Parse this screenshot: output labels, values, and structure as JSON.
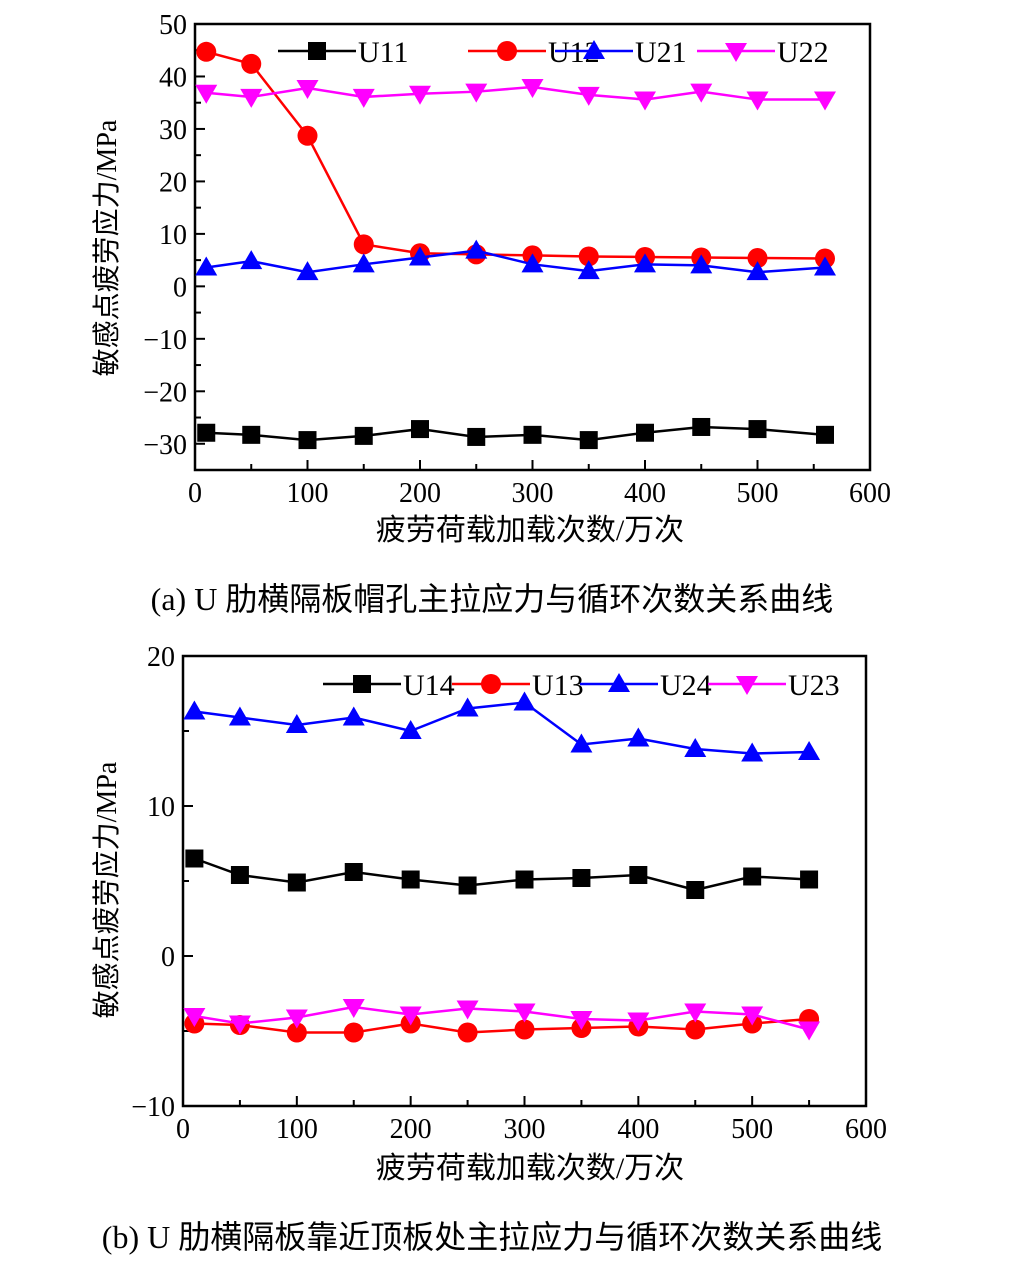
{
  "chart_data": [
    {
      "type": "line",
      "caption": "(a) U 肋横隔板帽孔主拉应力与循环次数关系曲线",
      "xlabel": "疲劳荷载加载次数/万次",
      "ylabel": "敏感点疲劳应力/MPa",
      "xlim": [
        0,
        600
      ],
      "ylim": [
        -35,
        50
      ],
      "xticks": [
        0,
        100,
        200,
        300,
        400,
        500,
        600
      ],
      "yticks": [
        50,
        40,
        30,
        20,
        10,
        0,
        -10,
        -20,
        -30
      ],
      "ytick_labels": [
        "50",
        "40",
        "30",
        "20",
        "10",
        "0",
        "−10",
        "−20",
        "−30"
      ],
      "legend_position": "top",
      "x": [
        10,
        50,
        100,
        150,
        200,
        250,
        300,
        350,
        400,
        450,
        500,
        560
      ],
      "series": [
        {
          "name": "U11",
          "color": "#000000",
          "marker": "square",
          "values": [
            -27.9,
            -28.3,
            -29.3,
            -28.5,
            -27.2,
            -28.7,
            -28.3,
            -29.3,
            -27.9,
            -26.8,
            -27.2,
            -28.3
          ]
        },
        {
          "name": "U12",
          "color": "#ff0000",
          "marker": "circle",
          "values": [
            44.7,
            42.4,
            28.7,
            8.0,
            6.3,
            6.1,
            5.9,
            5.7,
            5.6,
            5.5,
            5.4,
            5.3
          ]
        },
        {
          "name": "U21",
          "color": "#0000ff",
          "marker": "triangle-up",
          "values": [
            3.6,
            4.8,
            2.7,
            4.2,
            5.5,
            6.8,
            4.2,
            2.9,
            4.2,
            4.0,
            2.7,
            3.6
          ]
        },
        {
          "name": "U22",
          "color": "#ff00ff",
          "marker": "triangle-down",
          "values": [
            36.9,
            36.1,
            37.8,
            36.1,
            36.7,
            37.1,
            38.0,
            36.5,
            35.6,
            37.1,
            35.6,
            35.6
          ]
        }
      ]
    },
    {
      "type": "line",
      "caption": "(b) U 肋横隔板靠近顶板处主拉应力与循环次数关系曲线",
      "xlabel": "疲劳荷载加载次数/万次",
      "ylabel": "敏感点疲劳应力/MPa",
      "xlim": [
        0,
        600
      ],
      "ylim": [
        -10,
        20
      ],
      "xticks": [
        0,
        100,
        200,
        300,
        400,
        500,
        600
      ],
      "yticks": [
        20,
        10,
        0,
        -10
      ],
      "ytick_labels": [
        "20",
        "10",
        "0",
        "−10"
      ],
      "legend_position": "top",
      "x": [
        10,
        50,
        100,
        150,
        200,
        250,
        300,
        350,
        400,
        450,
        500,
        550
      ],
      "series": [
        {
          "name": "U14",
          "color": "#000000",
          "marker": "square",
          "values": [
            6.5,
            5.4,
            4.9,
            5.6,
            5.1,
            4.7,
            5.1,
            5.2,
            5.4,
            4.4,
            5.3,
            5.1
          ]
        },
        {
          "name": "U13",
          "color": "#ff0000",
          "marker": "circle",
          "values": [
            -4.5,
            -4.6,
            -5.1,
            -5.1,
            -4.5,
            -5.1,
            -4.9,
            -4.8,
            -4.7,
            -4.9,
            -4.5,
            -4.2
          ]
        },
        {
          "name": "U24",
          "color": "#0000ff",
          "marker": "triangle-up",
          "values": [
            16.3,
            15.9,
            15.4,
            15.9,
            15.0,
            16.5,
            16.9,
            14.1,
            14.5,
            13.8,
            13.5,
            13.6
          ]
        },
        {
          "name": "U23",
          "color": "#ff00ff",
          "marker": "triangle-down",
          "values": [
            -4.0,
            -4.5,
            -4.1,
            -3.4,
            -3.9,
            -3.5,
            -3.7,
            -4.2,
            -4.3,
            -3.7,
            -3.9,
            -4.9
          ]
        }
      ]
    }
  ]
}
